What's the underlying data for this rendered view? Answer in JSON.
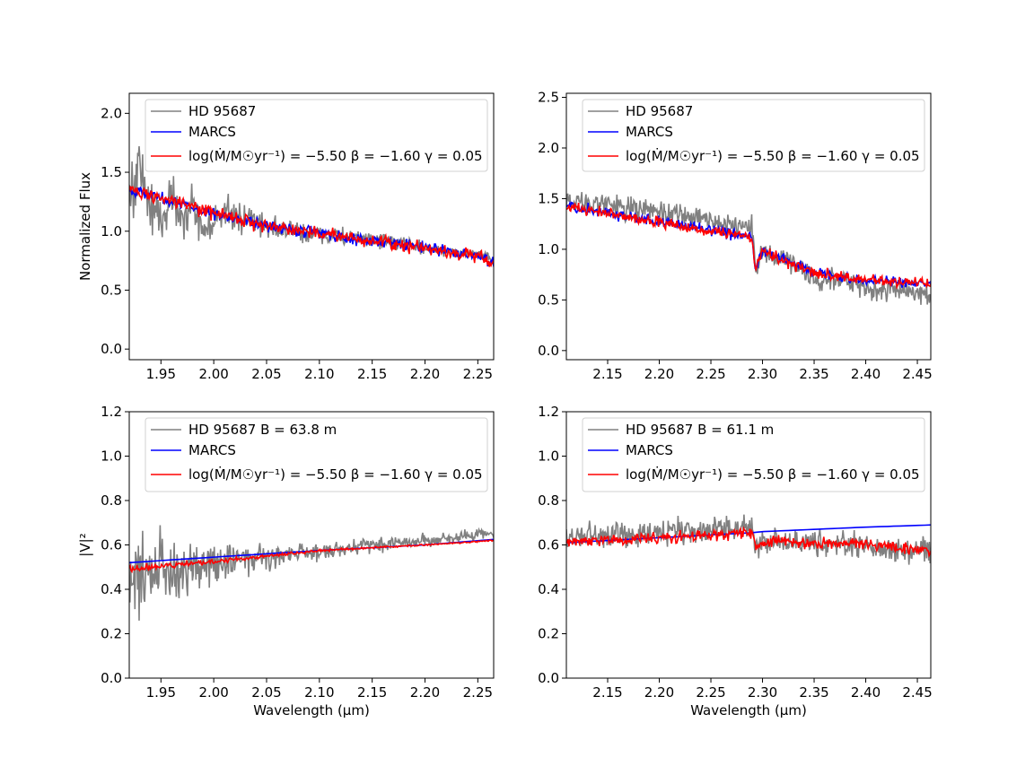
{
  "colors": {
    "observed": "#808080",
    "marcs": "#0000ff",
    "model": "#ff0000"
  },
  "chart_data": [
    {
      "type": "line",
      "panel": "top-left",
      "xlabel": "",
      "ylabel": "Normalized Flux",
      "xlim": [
        1.92,
        2.265
      ],
      "ylim": [
        -0.09,
        2.17
      ],
      "xticks": [
        "1.95",
        "2.00",
        "2.05",
        "2.10",
        "2.15",
        "2.20",
        "2.25"
      ],
      "yticks": [
        "0.0",
        "0.5",
        "1.0",
        "1.5",
        "2.0"
      ],
      "legend": {
        "placement": "top-right",
        "entries": [
          "HD 95687",
          "MARCS",
          "log(Ṁ/M☉yr⁻¹) = −5.50 β = −1.60 γ = 0.05"
        ]
      },
      "series": [
        {
          "name": "HD 95687",
          "color": "observed",
          "x": [
            1.92,
            1.93,
            1.94,
            1.95,
            1.96,
            1.97,
            1.98,
            1.99,
            2.0,
            2.01,
            2.02,
            2.03,
            2.05,
            2.07,
            2.1,
            2.13,
            2.15,
            2.18,
            2.2,
            2.23,
            2.26,
            2.265
          ],
          "y": [
            1.3,
            1.55,
            1.2,
            1.1,
            1.3,
            1.15,
            1.2,
            1.0,
            1.05,
            1.2,
            1.1,
            1.12,
            1.05,
            1.0,
            0.97,
            0.95,
            0.92,
            0.9,
            0.85,
            0.82,
            0.8,
            0.72
          ],
          "noise": 0.25,
          "noise_decay": 9,
          "noise_base": 0.03,
          "n": 520
        },
        {
          "name": "MARCS",
          "color": "marcs",
          "x": [
            1.92,
            1.95,
            2.0,
            2.05,
            2.1,
            2.15,
            2.2,
            2.25,
            2.265
          ],
          "y": [
            1.36,
            1.28,
            1.15,
            1.05,
            0.98,
            0.92,
            0.86,
            0.79,
            0.73
          ],
          "noise": 0.03,
          "noise_decay": 0,
          "noise_base": 0.02,
          "n": 420
        },
        {
          "name": "log(Ṁ/M☉yr⁻¹) = −5.50 β = −1.60 γ = 0.05",
          "color": "model",
          "x": [
            1.92,
            1.95,
            2.0,
            2.05,
            2.1,
            2.15,
            2.2,
            2.25,
            2.265
          ],
          "y": [
            1.36,
            1.28,
            1.15,
            1.05,
            0.98,
            0.92,
            0.86,
            0.79,
            0.72
          ],
          "noise": 0.03,
          "noise_decay": 0,
          "noise_base": 0.025,
          "n": 420
        }
      ]
    },
    {
      "type": "line",
      "panel": "top-right",
      "xlabel": "",
      "ylabel": "",
      "xlim": [
        2.11,
        2.463
      ],
      "ylim": [
        -0.09,
        2.54
      ],
      "xticks": [
        "2.15",
        "2.20",
        "2.25",
        "2.30",
        "2.35",
        "2.40",
        "2.45"
      ],
      "yticks": [
        "0.0",
        "0.5",
        "1.0",
        "1.5",
        "2.0",
        "2.5"
      ],
      "legend": {
        "placement": "top-right",
        "entries": [
          "HD 95687",
          "MARCS",
          "log(Ṁ/M☉yr⁻¹) = −5.50 β = −1.60 γ = 0.05"
        ]
      },
      "series": [
        {
          "name": "HD 95687",
          "color": "observed",
          "x": [
            2.11,
            2.15,
            2.2,
            2.25,
            2.29,
            2.293,
            2.3,
            2.32,
            2.35,
            2.38,
            2.4,
            2.43,
            2.463
          ],
          "y": [
            1.5,
            1.44,
            1.36,
            1.29,
            1.2,
            0.8,
            0.95,
            0.9,
            0.7,
            0.7,
            0.6,
            0.6,
            0.55
          ],
          "noise": 0.05,
          "noise_decay": 0,
          "noise_base": 0.06,
          "n": 520
        },
        {
          "name": "MARCS",
          "color": "marcs",
          "x": [
            2.11,
            2.15,
            2.2,
            2.25,
            2.29,
            2.293,
            2.3,
            2.32,
            2.35,
            2.38,
            2.4,
            2.43,
            2.463
          ],
          "y": [
            1.43,
            1.36,
            1.27,
            1.19,
            1.12,
            0.8,
            0.98,
            0.9,
            0.78,
            0.72,
            0.7,
            0.68,
            0.65
          ],
          "noise": 0.02,
          "noise_decay": 0,
          "noise_base": 0.03,
          "n": 420
        },
        {
          "name": "log(Ṁ/M☉yr⁻¹) = −5.50 β = −1.60 γ = 0.05",
          "color": "model",
          "x": [
            2.11,
            2.15,
            2.2,
            2.25,
            2.29,
            2.293,
            2.3,
            2.32,
            2.35,
            2.38,
            2.4,
            2.43,
            2.463
          ],
          "y": [
            1.42,
            1.35,
            1.26,
            1.18,
            1.11,
            0.8,
            0.98,
            0.9,
            0.77,
            0.72,
            0.7,
            0.68,
            0.66
          ],
          "noise": 0.02,
          "noise_decay": 0,
          "noise_base": 0.035,
          "n": 420
        }
      ]
    },
    {
      "type": "line",
      "panel": "bottom-left",
      "xlabel": "Wavelength (μm)",
      "ylabel": "|V|²",
      "xlim": [
        1.92,
        2.265
      ],
      "ylim": [
        0.0,
        1.2
      ],
      "xticks": [
        "1.95",
        "2.00",
        "2.05",
        "2.10",
        "2.15",
        "2.20",
        "2.25"
      ],
      "yticks": [
        "0.0",
        "0.2",
        "0.4",
        "0.6",
        "0.8",
        "1.0",
        "1.2"
      ],
      "legend": {
        "placement": "top-right",
        "entries": [
          "HD 95687 B = 63.8 m",
          "MARCS",
          "log(Ṁ/M☉yr⁻¹) = −5.50 β = −1.60 γ = 0.05"
        ]
      },
      "series": [
        {
          "name": "HD 95687 B = 63.8 m",
          "color": "observed",
          "x": [
            1.92,
            1.95,
            2.0,
            2.05,
            2.1,
            2.15,
            2.2,
            2.26,
            2.265
          ],
          "y": [
            0.45,
            0.48,
            0.52,
            0.55,
            0.57,
            0.6,
            0.62,
            0.65,
            0.63
          ],
          "noise": 0.18,
          "noise_decay": 12,
          "noise_base": 0.02,
          "n": 520
        },
        {
          "name": "MARCS",
          "color": "marcs",
          "x": [
            1.92,
            2.0,
            2.1,
            2.2,
            2.265
          ],
          "y": [
            0.52,
            0.545,
            0.575,
            0.6,
            0.625
          ],
          "noise": 0,
          "noise_decay": 0,
          "noise_base": 0,
          "n": 60
        },
        {
          "name": "log(Ṁ/M☉yr⁻¹) = −5.50 β = −1.60 γ = 0.05",
          "color": "model",
          "x": [
            1.92,
            1.95,
            2.0,
            2.05,
            2.1,
            2.2,
            2.265
          ],
          "y": [
            0.49,
            0.505,
            0.525,
            0.55,
            0.575,
            0.6,
            0.62
          ],
          "noise": 0.015,
          "noise_decay": 8,
          "noise_base": 0.002,
          "n": 420
        }
      ]
    },
    {
      "type": "line",
      "panel": "bottom-right",
      "xlabel": "Wavelength (μm)",
      "ylabel": "",
      "xlim": [
        2.11,
        2.463
      ],
      "ylim": [
        0.0,
        1.2
      ],
      "xticks": [
        "2.15",
        "2.20",
        "2.25",
        "2.30",
        "2.35",
        "2.40",
        "2.45"
      ],
      "yticks": [
        "0.0",
        "0.2",
        "0.4",
        "0.6",
        "0.8",
        "1.0",
        "1.2"
      ],
      "legend": {
        "placement": "top-right",
        "entries": [
          "HD 95687 B = 61.1 m",
          "MARCS",
          "log(Ṁ/M☉yr⁻¹) = −5.50 β = −1.60 γ = 0.05"
        ]
      },
      "series": [
        {
          "name": "HD 95687 B = 61.1 m",
          "color": "observed",
          "x": [
            2.11,
            2.15,
            2.2,
            2.25,
            2.29,
            2.293,
            2.32,
            2.35,
            2.38,
            2.4,
            2.43,
            2.463
          ],
          "y": [
            0.63,
            0.64,
            0.66,
            0.67,
            0.68,
            0.6,
            0.62,
            0.6,
            0.6,
            0.6,
            0.58,
            0.57
          ],
          "noise": 0.03,
          "noise_decay": 0,
          "noise_base": 0.025,
          "n": 520
        },
        {
          "name": "MARCS",
          "color": "marcs",
          "x": [
            2.11,
            2.29,
            2.3,
            2.35,
            2.4,
            2.463
          ],
          "y": [
            0.61,
            0.655,
            0.66,
            0.67,
            0.68,
            0.69
          ],
          "noise": 0,
          "noise_decay": 0,
          "noise_base": 0,
          "n": 60
        },
        {
          "name": "log(Ṁ/M☉yr⁻¹) = −5.50 β = −1.60 γ = 0.05",
          "color": "model",
          "x": [
            2.11,
            2.2,
            2.29,
            2.293,
            2.32,
            2.35,
            2.38,
            2.4,
            2.43,
            2.463
          ],
          "y": [
            0.61,
            0.635,
            0.655,
            0.6,
            0.62,
            0.6,
            0.61,
            0.6,
            0.59,
            0.58
          ],
          "noise": 0.0,
          "noise_decay": 0,
          "noise_base": 0.025,
          "n": 420
        }
      ]
    }
  ]
}
